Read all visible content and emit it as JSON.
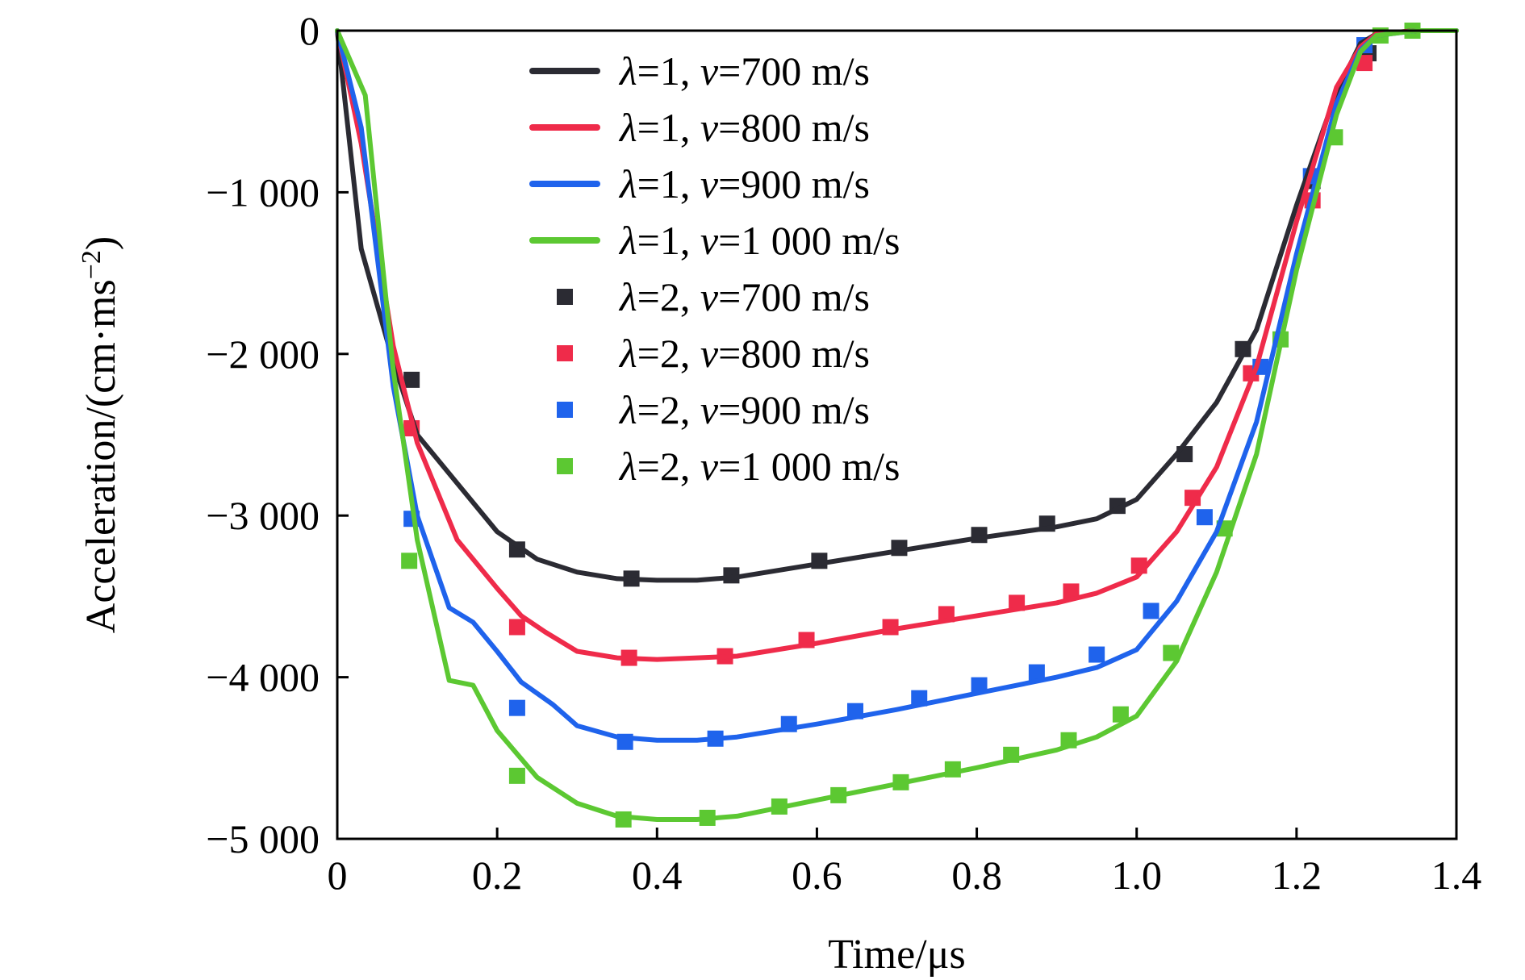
{
  "chart_data": {
    "type": "line",
    "xlabel": "Time/μs",
    "ylabel_main": "Acceleration/(cm·ms",
    "ylabel_sup": "−2",
    "ylabel_close": ")",
    "xlim": [
      0,
      1.4
    ],
    "ylim": [
      -5000,
      0
    ],
    "xticks": [
      0,
      0.2,
      0.4,
      0.6,
      0.8,
      1.0,
      1.2,
      1.4
    ],
    "xtick_labels": [
      "0",
      "0.2",
      "0.4",
      "0.6",
      "0.8",
      "1.0",
      "1.2",
      "1.4"
    ],
    "yticks": [
      0,
      -1000,
      -2000,
      -3000,
      -4000,
      -5000
    ],
    "ytick_labels": [
      "0",
      "−1 000",
      "−2 000",
      "−3 000",
      "−4 000",
      "−5 000"
    ],
    "grid": false,
    "legend_position": "top-center",
    "series": [
      {
        "name": "λ=1, v=700 m/s",
        "lambda": "λ=1,",
        "v": "=700 m/s",
        "style": "line",
        "color": "#2b2b33",
        "x": [
          0,
          0.03,
          0.07,
          0.1,
          0.15,
          0.2,
          0.25,
          0.3,
          0.35,
          0.4,
          0.45,
          0.5,
          0.6,
          0.7,
          0.8,
          0.9,
          0.95,
          1.0,
          1.05,
          1.1,
          1.15,
          1.2,
          1.25,
          1.28,
          1.3,
          1.35,
          1.4
        ],
        "y": [
          0,
          -1350,
          -2050,
          -2500,
          -2800,
          -3100,
          -3270,
          -3350,
          -3390,
          -3400,
          -3400,
          -3380,
          -3300,
          -3220,
          -3140,
          -3070,
          -3020,
          -2900,
          -2620,
          -2300,
          -1850,
          -1080,
          -380,
          -80,
          -20,
          0,
          0
        ]
      },
      {
        "name": "λ=1, v=800 m/s",
        "lambda": "λ=1,",
        "v": "=800 m/s",
        "style": "line",
        "color": "#ef2b4a",
        "x": [
          0,
          0.03,
          0.07,
          0.1,
          0.15,
          0.2,
          0.23,
          0.26,
          0.3,
          0.35,
          0.4,
          0.45,
          0.5,
          0.6,
          0.7,
          0.8,
          0.9,
          0.95,
          1.0,
          1.05,
          1.1,
          1.15,
          1.2,
          1.25,
          1.28,
          1.3,
          1.35,
          1.4
        ],
        "y": [
          0,
          -700,
          -1950,
          -2550,
          -3150,
          -3450,
          -3620,
          -3720,
          -3840,
          -3880,
          -3890,
          -3880,
          -3870,
          -3790,
          -3700,
          -3620,
          -3540,
          -3480,
          -3380,
          -3100,
          -2700,
          -2080,
          -1180,
          -350,
          -100,
          -20,
          0,
          0
        ]
      },
      {
        "name": "λ=1, v=900 m/s",
        "lambda": "λ=1,",
        "v": "=900 m/s",
        "style": "line",
        "color": "#1f63ec",
        "x": [
          0,
          0.03,
          0.07,
          0.1,
          0.14,
          0.17,
          0.2,
          0.23,
          0.27,
          0.3,
          0.35,
          0.4,
          0.45,
          0.5,
          0.6,
          0.7,
          0.8,
          0.9,
          0.95,
          1.0,
          1.05,
          1.1,
          1.15,
          1.2,
          1.25,
          1.28,
          1.3,
          1.35,
          1.4
        ],
        "y": [
          0,
          -600,
          -2200,
          -3000,
          -3570,
          -3660,
          -3840,
          -4030,
          -4170,
          -4300,
          -4370,
          -4390,
          -4390,
          -4370,
          -4290,
          -4200,
          -4100,
          -4000,
          -3940,
          -3830,
          -3530,
          -3100,
          -2420,
          -1380,
          -450,
          -120,
          -30,
          0,
          0
        ]
      },
      {
        "name": "λ=1, v=1 000 m/s",
        "lambda": "λ=1,",
        "v": "=1 000 m/s",
        "style": "line",
        "color": "#5cc832",
        "x": [
          0,
          0.035,
          0.07,
          0.1,
          0.14,
          0.17,
          0.2,
          0.25,
          0.3,
          0.35,
          0.4,
          0.45,
          0.5,
          0.6,
          0.7,
          0.8,
          0.9,
          0.95,
          1.0,
          1.05,
          1.1,
          1.15,
          1.2,
          1.25,
          1.28,
          1.3,
          1.35,
          1.4
        ],
        "y": [
          0,
          -400,
          -2100,
          -3150,
          -4020,
          -4050,
          -4330,
          -4620,
          -4780,
          -4860,
          -4880,
          -4880,
          -4860,
          -4760,
          -4660,
          -4560,
          -4450,
          -4370,
          -4240,
          -3900,
          -3350,
          -2620,
          -1480,
          -520,
          -130,
          -30,
          0,
          0
        ]
      },
      {
        "name": "λ=2, v=700 m/s",
        "lambda": "λ=2,",
        "v": "=700 m/s",
        "style": "marker",
        "color": "#2b2b33",
        "x": [
          0.093,
          0.225,
          0.368,
          0.493,
          0.603,
          0.703,
          0.803,
          0.888,
          0.976,
          1.06,
          1.133,
          1.22,
          1.29
        ],
        "y": [
          -2160,
          -3210,
          -3390,
          -3370,
          -3280,
          -3200,
          -3120,
          -3050,
          -2940,
          -2620,
          -1970,
          -930,
          -140
        ]
      },
      {
        "name": "λ=2, v=800 m/s",
        "lambda": "λ=2,",
        "v": "=800 m/s",
        "style": "marker",
        "color": "#ef2b4a",
        "x": [
          0.093,
          0.225,
          0.365,
          0.485,
          0.587,
          0.692,
          0.762,
          0.85,
          0.918,
          1.003,
          1.07,
          1.143,
          1.22,
          1.285
        ],
        "y": [
          -2460,
          -3690,
          -3880,
          -3870,
          -3770,
          -3690,
          -3610,
          -3540,
          -3470,
          -3310,
          -2890,
          -2120,
          -1050,
          -200
        ]
      },
      {
        "name": "λ=2, v=900 m/s",
        "lambda": "λ=2,",
        "v": "=900 m/s",
        "style": "marker",
        "color": "#1f63ec",
        "x": [
          0.093,
          0.225,
          0.36,
          0.473,
          0.565,
          0.648,
          0.728,
          0.803,
          0.875,
          0.95,
          1.018,
          1.085,
          1.155,
          1.218,
          1.285
        ],
        "y": [
          -3020,
          -4190,
          -4400,
          -4380,
          -4290,
          -4210,
          -4130,
          -4050,
          -3970,
          -3860,
          -3590,
          -3010,
          -2080,
          -900,
          -90
        ]
      },
      {
        "name": "λ=2, v=1 000 m/s",
        "lambda": "λ=2,",
        "v": "=1 000 m/s",
        "style": "marker",
        "color": "#5cc832",
        "x": [
          0.09,
          0.225,
          0.358,
          0.463,
          0.553,
          0.627,
          0.705,
          0.77,
          0.843,
          0.915,
          0.98,
          1.043,
          1.11,
          1.18,
          1.248,
          1.305,
          1.345
        ],
        "y": [
          -3280,
          -4610,
          -4880,
          -4870,
          -4800,
          -4730,
          -4650,
          -4570,
          -4480,
          -4390,
          -4230,
          -3850,
          -3080,
          -1910,
          -660,
          -30,
          0
        ]
      }
    ]
  }
}
